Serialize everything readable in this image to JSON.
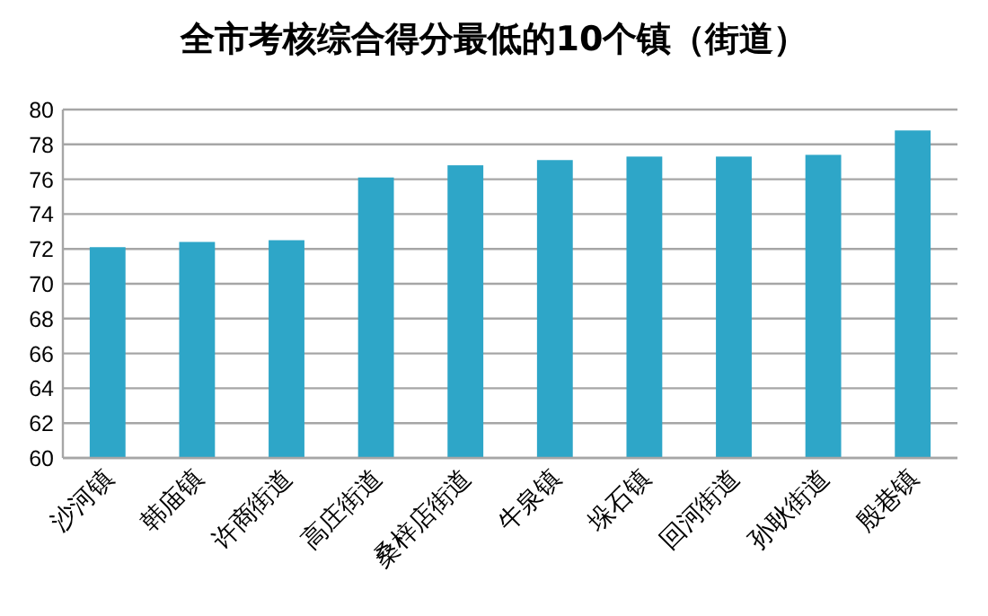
{
  "chart_data": {
    "type": "bar",
    "title": "全市考核综合得分最低的10个镇（街道）",
    "categories": [
      "沙河镇",
      "韩庙镇",
      "许商街道",
      "高庄街道",
      "桑梓店街道",
      "牛泉镇",
      "垛石镇",
      "回河街道",
      "孙耿街道",
      "殷巷镇"
    ],
    "values": [
      72.1,
      72.4,
      72.5,
      76.1,
      76.8,
      77.1,
      77.3,
      77.3,
      77.4,
      78.8
    ],
    "color": "#2ea6c8",
    "ylim": [
      60,
      80
    ],
    "yticks": [
      60,
      62,
      64,
      66,
      68,
      70,
      72,
      74,
      76,
      78,
      80
    ],
    "grid": "y"
  }
}
